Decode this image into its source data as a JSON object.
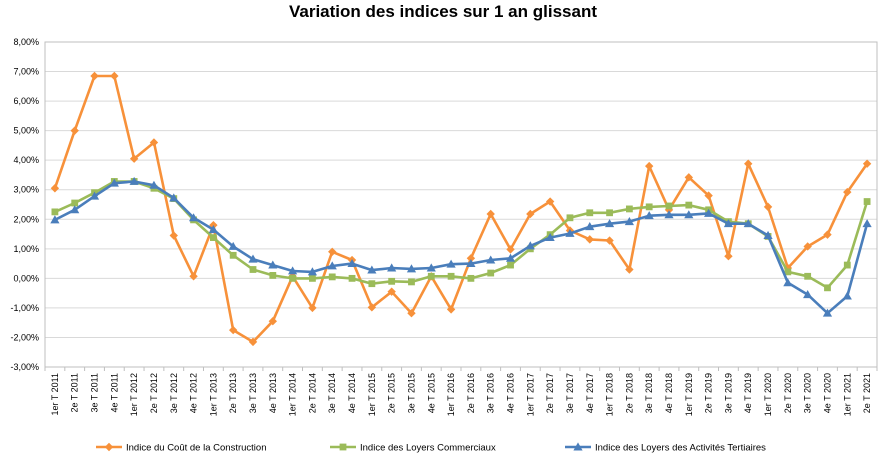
{
  "chart_data": {
    "type": "line",
    "title": "Variation des indices sur 1 an glissant",
    "xlabel": "",
    "ylabel": "",
    "ylim": [
      -3,
      8
    ],
    "y_ticks": [
      "-3,00%",
      "-2,00%",
      "-1,00%",
      "0,00%",
      "1,00%",
      "2,00%",
      "3,00%",
      "4,00%",
      "5,00%",
      "6,00%",
      "7,00%",
      "8,00%"
    ],
    "grid": true,
    "legend_position": "bottom",
    "categories": [
      "1er T 2011",
      "2e T 2011",
      "3e T 2011",
      "4e T 2011",
      "1er T 2012",
      "2e T 2012",
      "3e T 2012",
      "4e T 2012",
      "1er T 2013",
      "2e T 2013",
      "3e T 2013",
      "4e T 2013",
      "1er T 2014",
      "2e T 2014",
      "3e T 2014",
      "4e T 2014",
      "1er T 2015",
      "2e T 2015",
      "3e T 2015",
      "4e T 2015",
      "1er T 2016",
      "2e T 2016",
      "3e T 2016",
      "4e T 2016",
      "1er T 2017",
      "2e T 2017",
      "3e T 2017",
      "4e T 2017",
      "1er T 2018",
      "2e T 2018",
      "3e T 2018",
      "4e T 2018",
      "1er T 2019",
      "2e T 2019",
      "3e T 2019",
      "4e T 2019",
      "1er T 2020",
      "2e T 2020",
      "3e T 2020",
      "4e T 2020",
      "1er T 2021",
      "2e T 2021"
    ],
    "series": [
      {
        "name": "Indice du Coût de la Construction",
        "color": "#F7913A",
        "marker": "diamond",
        "values": [
          3.05,
          5.0,
          6.85,
          6.85,
          4.05,
          4.6,
          1.45,
          0.07,
          1.8,
          -1.75,
          -2.15,
          -1.45,
          0.07,
          -1.0,
          0.9,
          0.62,
          -0.98,
          -0.45,
          -1.18,
          0.07,
          -1.05,
          0.68,
          2.18,
          0.98,
          2.18,
          2.6,
          1.62,
          1.32,
          1.28,
          0.3,
          3.8,
          2.32,
          3.42,
          2.8,
          0.75,
          3.88,
          2.42,
          0.35,
          1.08,
          1.48,
          2.92,
          3.88
        ]
      },
      {
        "name": "Indice des Loyers Commerciaux",
        "color": "#9BBB59",
        "marker": "square",
        "values": [
          2.25,
          2.55,
          2.9,
          3.28,
          3.28,
          3.05,
          2.7,
          1.98,
          1.38,
          0.78,
          0.3,
          0.1,
          0.0,
          0.0,
          0.05,
          0.0,
          -0.18,
          -0.1,
          -0.12,
          0.07,
          0.07,
          0.0,
          0.18,
          0.45,
          1.0,
          1.48,
          2.05,
          2.22,
          2.22,
          2.35,
          2.42,
          2.45,
          2.48,
          2.32,
          1.92,
          1.85,
          1.42,
          0.22,
          0.07,
          -0.32,
          0.45,
          2.6
        ]
      },
      {
        "name": "Indice des Loyers des Activités Tertiaires",
        "color": "#4A7EBB",
        "marker": "triangle",
        "values": [
          1.98,
          2.32,
          2.78,
          3.22,
          3.28,
          3.15,
          2.72,
          2.05,
          1.65,
          1.08,
          0.65,
          0.45,
          0.25,
          0.22,
          0.42,
          0.5,
          0.28,
          0.35,
          0.32,
          0.35,
          0.48,
          0.5,
          0.62,
          0.68,
          1.1,
          1.38,
          1.52,
          1.75,
          1.85,
          1.92,
          2.12,
          2.15,
          2.15,
          2.2,
          1.85,
          1.85,
          1.45,
          -0.15,
          -0.55,
          -1.18,
          -0.6,
          1.85
        ]
      }
    ]
  }
}
